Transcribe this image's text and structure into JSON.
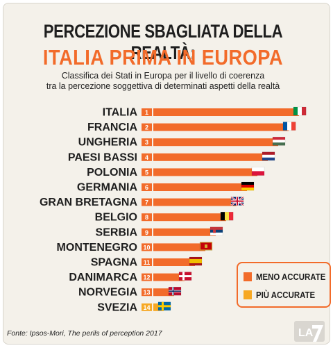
{
  "title_line1": "PERCEZIONE SBAGLIATA DELLA REALTÀ:",
  "title_line2": "ITALIA PRIMA IN EUROPA",
  "subtitle_line1": "Classifica dei Stati in Europa per il livello di coerenza",
  "subtitle_line2": "tra la percezione soggettiva di determinati aspetti della realtà",
  "source": "Fonte: Ipsos-Mori, The perils of perception 2017",
  "logo_text": "LA7",
  "colors": {
    "orange": "#f26b2a",
    "yellow": "#f7a823",
    "text": "#1e1e1e",
    "background": "#f4f1ea"
  },
  "chart_data": {
    "type": "bar",
    "orientation": "horizontal",
    "categories": [
      "ITALIA",
      "FRANCIA",
      "UNGHERIA",
      "PAESI BASSI",
      "POLONIA",
      "GERMANIA",
      "GRAN BRETAGNA",
      "BELGIO",
      "SERBIA",
      "MONTENEGRO",
      "SPAGNA",
      "DANIMARCA",
      "NORVEGIA",
      "SVEZIA"
    ],
    "ranks": [
      "1",
      "2",
      "3",
      "4",
      "5",
      "6",
      "7",
      "8",
      "9",
      "10",
      "11",
      "12",
      "13",
      "14"
    ],
    "groups": [
      "meno",
      "meno",
      "meno",
      "meno",
      "meno",
      "meno",
      "meno",
      "meno",
      "meno",
      "meno",
      "meno",
      "meno",
      "meno",
      "piu"
    ],
    "values": [
      14,
      13,
      12,
      11,
      10,
      9,
      8,
      7,
      6,
      5,
      4,
      3,
      2,
      1
    ],
    "flags": [
      "flag-italy",
      "flag-france",
      "flag-hungary",
      "flag-netherlands",
      "flag-poland",
      "flag-germany",
      "flag-united-kingdom",
      "flag-belgium",
      "flag-serbia",
      "flag-montenegro",
      "flag-spain",
      "flag-denmark",
      "flag-norway",
      "flag-sweden"
    ],
    "legend": [
      {
        "label": "MENO ACCURATE",
        "color": "#f26b2a"
      },
      {
        "label": "PIÙ ACCURATE",
        "color": "#f7a823"
      }
    ],
    "legend_position": "bottom-right"
  }
}
